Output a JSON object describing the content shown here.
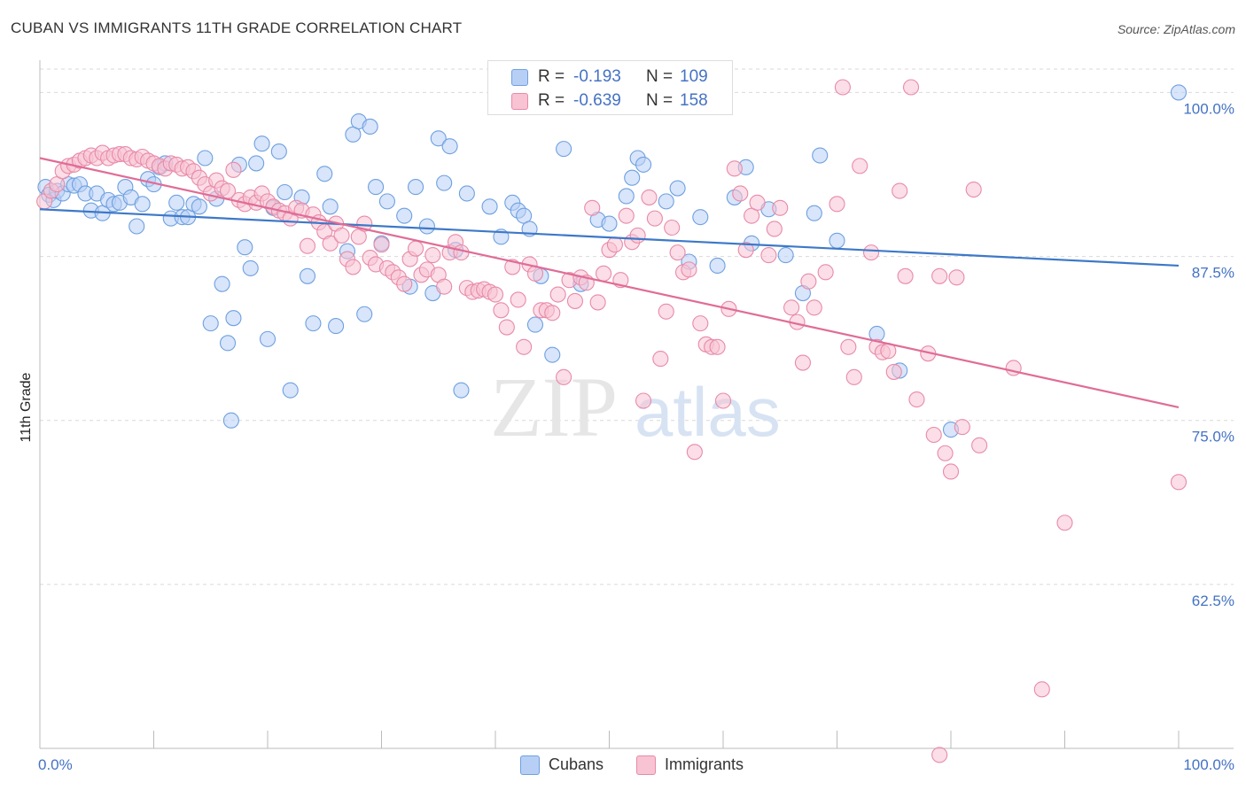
{
  "title": "CUBAN VS IMMIGRANTS 11TH GRADE CORRELATION CHART",
  "source": "Source: ZipAtlas.com",
  "watermark": {
    "zip": "ZIP",
    "atlas": "atlas"
  },
  "legend": {
    "r_label": "R =",
    "n_label": "N =",
    "series": [
      {
        "name": "Cubans",
        "r": "-0.193",
        "n": "109",
        "color": "#6ea0e0",
        "fill": "#b8cff5",
        "line": "#3d78c8"
      },
      {
        "name": "Immigrants",
        "r": "-0.639",
        "n": "158",
        "color": "#e88aa8",
        "fill": "#f8c3d3",
        "line": "#e06c96"
      }
    ]
  },
  "chart_data": {
    "type": "scatter",
    "title": "CUBAN VS IMMIGRANTS 11TH GRADE CORRELATION CHART",
    "xlabel": "",
    "ylabel": "11th Grade",
    "xlim": [
      0,
      100
    ],
    "ylim": [
      50,
      103
    ],
    "x_tick_labels": [
      "0.0%",
      "100.0%"
    ],
    "y_ticks": [
      62.5,
      75.0,
      87.5,
      100.0
    ],
    "y_tick_labels": [
      "62.5%",
      "75.0%",
      "87.5%",
      "100.0%"
    ],
    "grid": true,
    "series": [
      {
        "name": "Cubans",
        "trend": {
          "x": [
            0,
            100
          ],
          "y": [
            91.1,
            86.8
          ]
        },
        "points": [
          [
            0.5,
            92.8
          ],
          [
            0.8,
            92.2
          ],
          [
            1.2,
            91.8
          ],
          [
            1.5,
            92.5
          ],
          [
            2,
            92.3
          ],
          [
            2.5,
            93
          ],
          [
            3,
            92.9
          ],
          [
            3.5,
            93
          ],
          [
            4,
            92.3
          ],
          [
            4.5,
            91
          ],
          [
            5,
            92.3
          ],
          [
            5.5,
            90.8
          ],
          [
            6,
            91.8
          ],
          [
            6.5,
            91.5
          ],
          [
            7,
            91.6
          ],
          [
            7.5,
            92.8
          ],
          [
            8,
            92
          ],
          [
            8.5,
            89.8
          ],
          [
            9,
            91.5
          ],
          [
            9.5,
            93.4
          ],
          [
            10,
            93
          ],
          [
            10.5,
            94.3
          ],
          [
            11,
            94.6
          ],
          [
            11.5,
            90.4
          ],
          [
            12,
            91.6
          ],
          [
            12.5,
            90.5
          ],
          [
            13,
            90.5
          ],
          [
            13.5,
            91.5
          ],
          [
            14,
            91.3
          ],
          [
            14.5,
            95
          ],
          [
            15,
            82.4
          ],
          [
            15.5,
            91.9
          ],
          [
            16,
            85.4
          ],
          [
            16.5,
            80.9
          ],
          [
            16.8,
            75
          ],
          [
            17,
            82.8
          ],
          [
            17.5,
            94.5
          ],
          [
            18,
            88.2
          ],
          [
            18.5,
            86.6
          ],
          [
            19,
            94.6
          ],
          [
            19.5,
            96.1
          ],
          [
            20,
            81.2
          ],
          [
            20.5,
            91.2
          ],
          [
            21,
            95.5
          ],
          [
            21.5,
            92.4
          ],
          [
            22,
            77.3
          ],
          [
            23,
            92
          ],
          [
            23.5,
            86
          ],
          [
            24,
            82.4
          ],
          [
            25,
            93.8
          ],
          [
            25.5,
            91.3
          ],
          [
            26,
            82.2
          ],
          [
            27,
            87.9
          ],
          [
            27.5,
            96.8
          ],
          [
            28,
            97.8
          ],
          [
            28.5,
            83.1
          ],
          [
            29,
            97.4
          ],
          [
            29.5,
            92.8
          ],
          [
            30,
            88.5
          ],
          [
            30.5,
            91.7
          ],
          [
            32,
            90.6
          ],
          [
            32.5,
            85.2
          ],
          [
            33,
            92.8
          ],
          [
            34,
            89.8
          ],
          [
            34.5,
            84.7
          ],
          [
            35,
            96.5
          ],
          [
            35.5,
            93.1
          ],
          [
            36,
            95.9
          ],
          [
            36.5,
            88
          ],
          [
            37,
            77.3
          ],
          [
            37.5,
            92.3
          ],
          [
            39.5,
            91.3
          ],
          [
            40.5,
            89
          ],
          [
            41.5,
            91.6
          ],
          [
            42,
            91
          ],
          [
            42.5,
            90.6
          ],
          [
            43,
            89.6
          ],
          [
            43.5,
            82.3
          ],
          [
            44,
            86
          ],
          [
            45,
            80
          ],
          [
            46,
            95.7
          ],
          [
            47.5,
            85.4
          ],
          [
            49,
            90.3
          ],
          [
            50,
            90
          ],
          [
            51.5,
            92.1
          ],
          [
            52,
            93.5
          ],
          [
            52.5,
            95
          ],
          [
            53,
            94.5
          ],
          [
            55,
            91.7
          ],
          [
            56,
            92.7
          ],
          [
            57,
            87.1
          ],
          [
            58,
            90.5
          ],
          [
            59.5,
            86.8
          ],
          [
            61,
            92
          ],
          [
            62,
            94.3
          ],
          [
            62.5,
            88.5
          ],
          [
            64,
            91.1
          ],
          [
            65.5,
            87.6
          ],
          [
            67,
            84.7
          ],
          [
            68,
            90.8
          ],
          [
            68.5,
            95.2
          ],
          [
            70,
            88.7
          ],
          [
            73.5,
            81.6
          ],
          [
            75.5,
            78.8
          ],
          [
            80,
            74.3
          ],
          [
            100,
            100
          ]
        ]
      },
      {
        "name": "Immigrants",
        "trend": {
          "x": [
            0,
            100
          ],
          "y": [
            95.0,
            76.0
          ]
        },
        "points": [
          [
            0.4,
            91.7
          ],
          [
            1,
            92.5
          ],
          [
            1.5,
            93
          ],
          [
            2,
            94
          ],
          [
            2.5,
            94.4
          ],
          [
            3,
            94.5
          ],
          [
            3.5,
            94.8
          ],
          [
            4,
            95
          ],
          [
            4.5,
            95.2
          ],
          [
            5,
            95
          ],
          [
            5.5,
            95.4
          ],
          [
            6,
            95
          ],
          [
            6.5,
            95.2
          ],
          [
            7,
            95.3
          ],
          [
            7.5,
            95.3
          ],
          [
            8,
            95
          ],
          [
            8.5,
            94.9
          ],
          [
            9,
            95.1
          ],
          [
            9.5,
            94.8
          ],
          [
            10,
            94.6
          ],
          [
            10.5,
            94.4
          ],
          [
            11,
            94.2
          ],
          [
            11.5,
            94.6
          ],
          [
            12,
            94.5
          ],
          [
            12.5,
            94.2
          ],
          [
            13,
            94.3
          ],
          [
            13.5,
            94
          ],
          [
            14,
            93.5
          ],
          [
            14.5,
            93
          ],
          [
            15,
            92.3
          ],
          [
            15.5,
            93.3
          ],
          [
            16,
            92.7
          ],
          [
            16.5,
            92.5
          ],
          [
            17,
            94.1
          ],
          [
            17.5,
            91.8
          ],
          [
            18,
            91.5
          ],
          [
            18.5,
            92
          ],
          [
            19,
            91.6
          ],
          [
            19.5,
            92.3
          ],
          [
            20,
            91.7
          ],
          [
            20.5,
            91.3
          ],
          [
            21,
            91
          ],
          [
            21.5,
            90.8
          ],
          [
            22,
            90.4
          ],
          [
            22.5,
            91.2
          ],
          [
            23,
            91
          ],
          [
            23.5,
            88.3
          ],
          [
            24,
            90.7
          ],
          [
            24.5,
            90.1
          ],
          [
            25,
            89.4
          ],
          [
            25.5,
            88.5
          ],
          [
            26,
            90
          ],
          [
            26.5,
            89.1
          ],
          [
            27,
            87.3
          ],
          [
            27.5,
            86.7
          ],
          [
            28,
            89
          ],
          [
            28.5,
            90
          ],
          [
            29,
            87.4
          ],
          [
            29.5,
            86.9
          ],
          [
            30,
            88.4
          ],
          [
            30.5,
            86.6
          ],
          [
            31,
            86.3
          ],
          [
            31.5,
            85.9
          ],
          [
            32,
            85.4
          ],
          [
            32.5,
            87.3
          ],
          [
            33,
            88.1
          ],
          [
            33.5,
            86.1
          ],
          [
            34,
            86.5
          ],
          [
            34.5,
            87.6
          ],
          [
            35,
            86.1
          ],
          [
            35.5,
            85.2
          ],
          [
            36,
            87.8
          ],
          [
            36.5,
            88.6
          ],
          [
            37,
            87.8
          ],
          [
            37.5,
            85.1
          ],
          [
            38,
            84.8
          ],
          [
            38.5,
            84.9
          ],
          [
            39,
            85
          ],
          [
            39.5,
            84.8
          ],
          [
            40,
            84.6
          ],
          [
            40.5,
            83.4
          ],
          [
            41,
            82.1
          ],
          [
            41.5,
            86.7
          ],
          [
            42,
            84.2
          ],
          [
            42.5,
            80.6
          ],
          [
            43,
            86.9
          ],
          [
            43.5,
            86.2
          ],
          [
            44,
            83.4
          ],
          [
            44.5,
            83.4
          ],
          [
            45,
            83.2
          ],
          [
            45.5,
            84.6
          ],
          [
            46,
            78.3
          ],
          [
            46.5,
            85.7
          ],
          [
            47,
            84.1
          ],
          [
            47.5,
            85.9
          ],
          [
            48,
            85.5
          ],
          [
            48.5,
            91.2
          ],
          [
            49,
            84
          ],
          [
            49.5,
            86.2
          ],
          [
            50,
            88
          ],
          [
            50.5,
            88.4
          ],
          [
            51,
            85.7
          ],
          [
            51.5,
            90.6
          ],
          [
            52,
            88.6
          ],
          [
            52.5,
            89.1
          ],
          [
            53,
            76.5
          ],
          [
            53.5,
            92
          ],
          [
            54,
            90.4
          ],
          [
            54.5,
            79.7
          ],
          [
            55,
            83.3
          ],
          [
            55.5,
            89.7
          ],
          [
            56,
            87.8
          ],
          [
            56.5,
            86.3
          ],
          [
            57,
            86.5
          ],
          [
            57.5,
            72.6
          ],
          [
            58,
            82.4
          ],
          [
            58.5,
            80.8
          ],
          [
            59,
            80.6
          ],
          [
            59.5,
            80.6
          ],
          [
            60,
            76.5
          ],
          [
            60.5,
            83.5
          ],
          [
            61,
            94.2
          ],
          [
            61.5,
            92.3
          ],
          [
            62,
            88
          ],
          [
            62.5,
            90.6
          ],
          [
            63,
            91.6
          ],
          [
            64,
            87.6
          ],
          [
            64.5,
            89.6
          ],
          [
            65,
            91.2
          ],
          [
            66,
            83.6
          ],
          [
            66.5,
            82.5
          ],
          [
            67,
            79.4
          ],
          [
            67.5,
            85.6
          ],
          [
            68,
            83.6
          ],
          [
            69,
            86.3
          ],
          [
            70,
            91.5
          ],
          [
            71,
            80.6
          ],
          [
            71.5,
            78.3
          ],
          [
            72,
            94.4
          ],
          [
            73,
            87.8
          ],
          [
            73.5,
            80.6
          ],
          [
            74,
            80.2
          ],
          [
            74.5,
            80.3
          ],
          [
            75,
            78.7
          ],
          [
            75.5,
            92.5
          ],
          [
            76,
            86
          ],
          [
            77,
            76.6
          ],
          [
            78,
            80.1
          ],
          [
            78.5,
            73.9
          ],
          [
            79,
            86
          ],
          [
            79.5,
            72.5
          ],
          [
            80,
            71.1
          ],
          [
            80.5,
            85.9
          ],
          [
            81,
            74.5
          ],
          [
            82,
            92.6
          ],
          [
            82.5,
            73.1
          ],
          [
            85.5,
            79
          ],
          [
            90,
            67.2
          ],
          [
            100,
            70.3
          ],
          [
            47,
            100.3
          ],
          [
            70.5,
            100.4
          ],
          [
            76.5,
            100.4
          ],
          [
            88,
            54.5
          ],
          [
            79,
            49.5
          ]
        ]
      }
    ]
  }
}
